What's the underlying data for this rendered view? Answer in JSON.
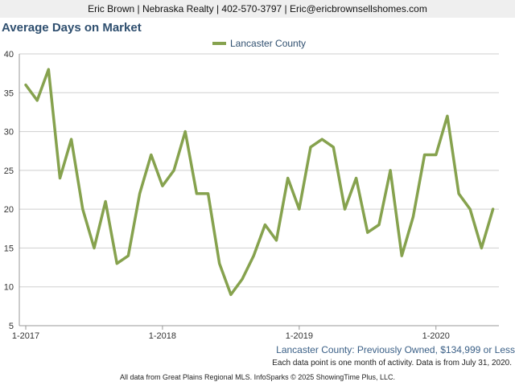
{
  "header": {
    "contact_line": "Eric Brown | Nebraska Realty | 402-570-3797 | Eric@ericbrownsellshomes.com"
  },
  "chart_data": {
    "type": "line",
    "title": "Average Days on Market",
    "subtitle": "Lancaster County: Previously Owned, $134,999 or Less",
    "note": "Each data point is one month of activity. Data is from July 31, 2020.",
    "x_tick_labels": [
      "1-2017",
      "1-2018",
      "1-2019",
      "1-2020"
    ],
    "x_tick_index": [
      0,
      12,
      24,
      36
    ],
    "ylim": [
      5,
      40
    ],
    "y_ticks": [
      5,
      10,
      15,
      20,
      25,
      30,
      35,
      40
    ],
    "grid": true,
    "legend_position": "top-center",
    "series": [
      {
        "name": "Lancaster County",
        "color": "#86a24e",
        "start": "2017-01",
        "values": [
          36,
          34,
          38,
          24,
          29,
          20,
          15,
          21,
          13,
          14,
          22,
          27,
          23,
          25,
          30,
          22,
          22,
          13,
          9,
          11,
          14,
          18,
          16,
          24,
          20,
          28,
          29,
          28,
          20,
          24,
          17,
          18,
          25,
          14,
          19,
          27,
          27,
          32,
          22,
          20,
          15,
          20
        ]
      }
    ]
  },
  "footer": {
    "text": "All data from Great Plains Regional MLS. InfoSparks © 2025 ShowingTime Plus, LLC."
  }
}
